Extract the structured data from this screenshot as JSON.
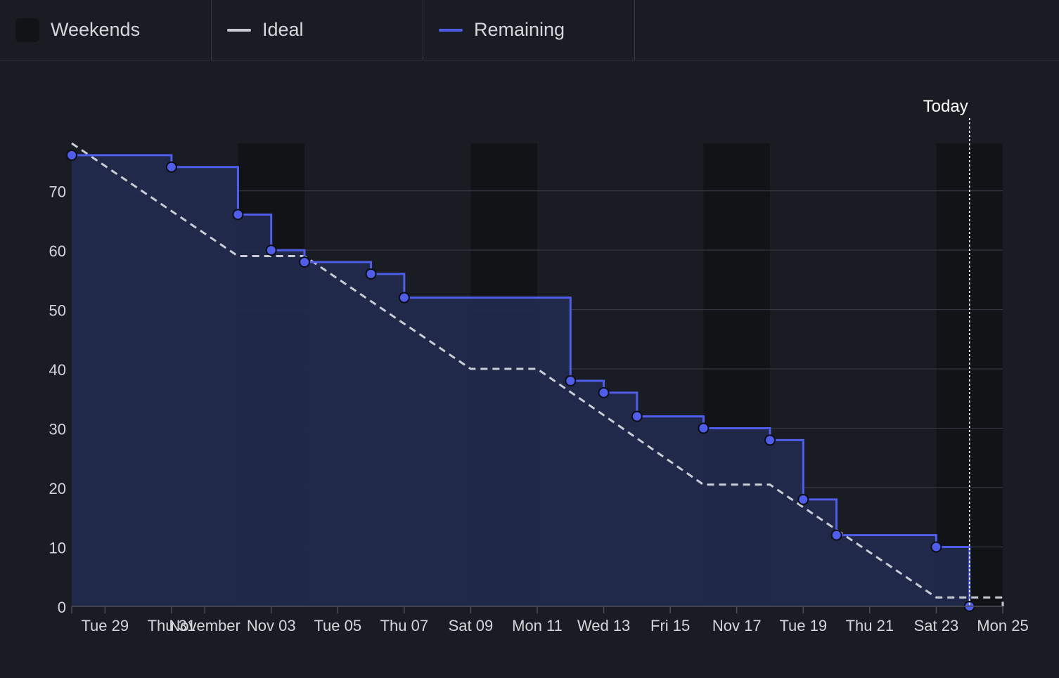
{
  "legend": {
    "weekends_label": "Weekends",
    "ideal_label": "Ideal",
    "remaining_label": "Remaining"
  },
  "colors": {
    "background": "#1a1c24",
    "weekend_band": "#111317",
    "remaining_line": "#4f5de8",
    "remaining_fill": "#222a4e",
    "ideal_line": "#c9ccd4",
    "grid": "#363945",
    "axis_text": "#d4d6dc"
  },
  "chart_data": {
    "type": "line",
    "x_axis_type": "date",
    "xlim": [
      "2024-10-28",
      "2024-11-25"
    ],
    "ylim": [
      0,
      78
    ],
    "y_ticks": [
      0,
      10,
      20,
      30,
      40,
      50,
      60,
      70
    ],
    "x_ticks": [
      {
        "date": "2024-10-29",
        "label": "Tue 29"
      },
      {
        "date": "2024-10-31",
        "label": "Thu 31"
      },
      {
        "date": "2024-11-01",
        "label": "November"
      },
      {
        "date": "2024-11-03",
        "label": "Nov 03"
      },
      {
        "date": "2024-11-05",
        "label": "Tue 05"
      },
      {
        "date": "2024-11-07",
        "label": "Thu 07"
      },
      {
        "date": "2024-11-09",
        "label": "Sat 09"
      },
      {
        "date": "2024-11-11",
        "label": "Mon 11"
      },
      {
        "date": "2024-11-13",
        "label": "Wed 13"
      },
      {
        "date": "2024-11-15",
        "label": "Fri 15"
      },
      {
        "date": "2024-11-17",
        "label": "Nov 17"
      },
      {
        "date": "2024-11-19",
        "label": "Tue 19"
      },
      {
        "date": "2024-11-21",
        "label": "Thu 21"
      },
      {
        "date": "2024-11-23",
        "label": "Sat 23"
      },
      {
        "date": "2024-11-25",
        "label": "Mon 25"
      }
    ],
    "weekends": [
      [
        "2024-11-02",
        "2024-11-04"
      ],
      [
        "2024-11-09",
        "2024-11-11"
      ],
      [
        "2024-11-16",
        "2024-11-18"
      ],
      [
        "2024-11-23",
        "2024-11-25"
      ]
    ],
    "today": {
      "date": "2024-11-24",
      "label": "Today"
    },
    "series": [
      {
        "name": "Remaining",
        "style": "step",
        "points": [
          {
            "x": "2024-10-28",
            "y": 76
          },
          {
            "x": "2024-10-31",
            "y": 74
          },
          {
            "x": "2024-11-02",
            "y": 66
          },
          {
            "x": "2024-11-03",
            "y": 60
          },
          {
            "x": "2024-11-04",
            "y": 58
          },
          {
            "x": "2024-11-06",
            "y": 56
          },
          {
            "x": "2024-11-07",
            "y": 52
          },
          {
            "x": "2024-11-12",
            "y": 38
          },
          {
            "x": "2024-11-13",
            "y": 36
          },
          {
            "x": "2024-11-14",
            "y": 32
          },
          {
            "x": "2024-11-16",
            "y": 30
          },
          {
            "x": "2024-11-18",
            "y": 28
          },
          {
            "x": "2024-11-19",
            "y": 18
          },
          {
            "x": "2024-11-20",
            "y": 12
          },
          {
            "x": "2024-11-23",
            "y": 10
          },
          {
            "x": "2024-11-24",
            "y": 0
          }
        ]
      },
      {
        "name": "Ideal",
        "style": "dashed",
        "points": [
          {
            "x": "2024-10-28",
            "y": 78
          },
          {
            "x": "2024-11-02",
            "y": 59
          },
          {
            "x": "2024-11-04",
            "y": 59
          },
          {
            "x": "2024-11-09",
            "y": 40
          },
          {
            "x": "2024-11-11",
            "y": 40
          },
          {
            "x": "2024-11-16",
            "y": 20.5
          },
          {
            "x": "2024-11-18",
            "y": 20.5
          },
          {
            "x": "2024-11-23",
            "y": 1.5
          },
          {
            "x": "2024-11-25",
            "y": 1.5
          },
          {
            "x": "2024-11-25",
            "y": 0
          }
        ]
      }
    ]
  }
}
